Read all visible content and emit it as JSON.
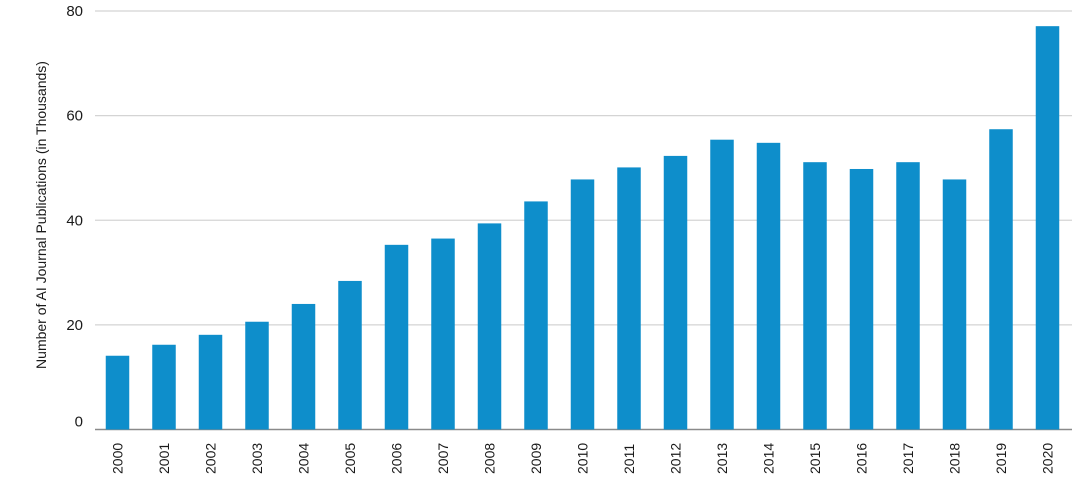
{
  "chart_data": {
    "type": "bar",
    "title": "",
    "xlabel": "",
    "ylabel": "Number of AI Journal Publications (in Thousands)",
    "ylim": [
      0,
      80
    ],
    "yticks": [
      0,
      20,
      40,
      60,
      80
    ],
    "grid": true,
    "bar_color": "#0e8ecb",
    "categories": [
      "2000",
      "2001",
      "2002",
      "2003",
      "2004",
      "2005",
      "2006",
      "2007",
      "2008",
      "2009",
      "2010",
      "2011",
      "2012",
      "2013",
      "2014",
      "2015",
      "2016",
      "2017",
      "2018",
      "2019",
      "2020"
    ],
    "values": [
      14.1,
      16.2,
      18.1,
      20.6,
      24.0,
      28.4,
      35.3,
      36.5,
      39.4,
      43.6,
      47.8,
      50.1,
      52.3,
      55.4,
      54.8,
      51.1,
      49.8,
      51.1,
      47.8,
      57.4,
      77.1
    ]
  }
}
